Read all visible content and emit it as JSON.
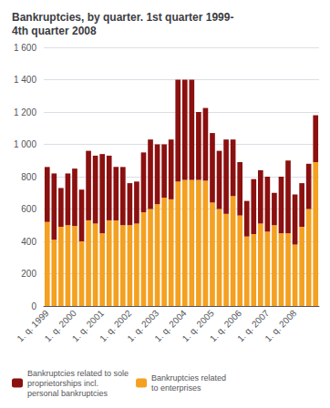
{
  "chart_data": {
    "type": "bar",
    "title": "Bankruptcies, by quarter. 1st quarter 1999-\n4th quarter 2008",
    "categories": [
      "1. q. 1999",
      null,
      null,
      null,
      "1. q. 2000",
      null,
      null,
      null,
      "1. q. 2001",
      null,
      null,
      null,
      "1. q. 2002",
      null,
      null,
      null,
      "1. q. 2003",
      null,
      null,
      null,
      "1. q. 2004",
      null,
      null,
      null,
      "1. q. 2005",
      null,
      null,
      null,
      "1. q. 2006",
      null,
      null,
      null,
      "1. q. 2007",
      null,
      null,
      null,
      "1. q. 2008",
      null,
      null,
      null
    ],
    "series": [
      {
        "name": "Bankruptcies related\nto enterprises",
        "color": "#F4A020",
        "values": [
          520,
          410,
          490,
          500,
          495,
          400,
          530,
          510,
          450,
          530,
          530,
          500,
          500,
          510,
          580,
          600,
          630,
          670,
          660,
          770,
          780,
          780,
          780,
          775,
          640,
          600,
          570,
          680,
          560,
          430,
          445,
          510,
          460,
          500,
          450,
          450,
          380,
          490,
          600,
          890
        ]
      },
      {
        "name": "Bankruptcies related to sole\nproprietorships incl.\npersonal bankruptcies",
        "color": "#8B1010",
        "values": [
          340,
          410,
          240,
          320,
          355,
          320,
          430,
          420,
          490,
          400,
          330,
          360,
          260,
          260,
          370,
          430,
          370,
          330,
          370,
          630,
          620,
          620,
          420,
          450,
          430,
          360,
          460,
          350,
          330,
          220,
          340,
          330,
          340,
          200,
          350,
          450,
          310,
          270,
          280,
          290
        ]
      }
    ],
    "ylim": [
      0,
      1600
    ],
    "yticks": [
      0,
      200,
      400,
      600,
      800,
      {
        "value": 1000,
        "label": "1 000"
      },
      {
        "value": 1200,
        "label": "1 200"
      },
      {
        "value": 1400,
        "label": "1 400"
      },
      {
        "value": 1600,
        "label": "1 600"
      }
    ],
    "grid": true,
    "stacked": true,
    "legend": "lower left"
  }
}
